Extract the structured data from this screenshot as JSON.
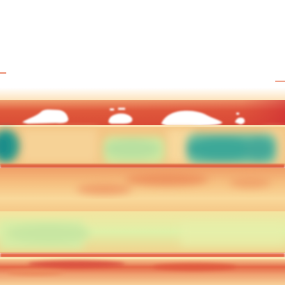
{
  "image": {
    "kind": "thermal-false-color",
    "palette": "spectral",
    "colors": {
      "hot": "#c8282a",
      "warm": "#e2603a",
      "mid": "#f4b06e",
      "pale": "#fbe6a6",
      "cool": "#cfe8a0",
      "cold": "#2a9c8c",
      "saturated": "#ffffff"
    }
  }
}
